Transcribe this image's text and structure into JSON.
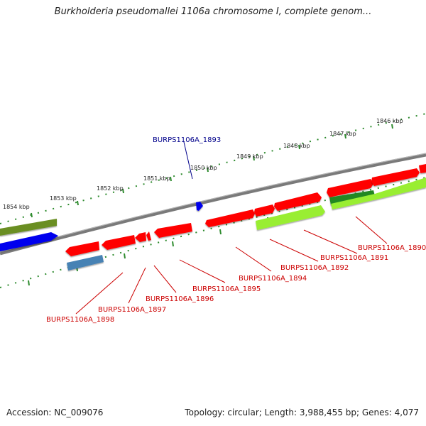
{
  "title": "Burkholderia pseudomallei 1106a chromosome I, complete genom...",
  "accession_text": "Accession: NC_009076",
  "summary_text": "Topology: circular; Length: 3,988,455 bp; Genes: 4,077",
  "colors": {
    "backbone": "#7a7a7a",
    "tick_marks": "#2e8b2e",
    "gene_red": "#ff0000",
    "gene_blue": "#0000ee",
    "gene_lightgreen": "#99ee33",
    "gene_darkgreen": "#228822",
    "gene_olive": "#6b8e23",
    "gene_steelblue": "#4682b4",
    "label_red": "#cc0000",
    "label_blue": "#00008b"
  },
  "kbp_labels": [
    "1854 kbp",
    "1853 kbp",
    "1852 kbp",
    "1851 kbp",
    "1850 kbp",
    "1849 kbp",
    "1848 kbp",
    "1847 kbp",
    "1846 kbp"
  ],
  "gene_labels": [
    {
      "text": "BURPS1106A_1893",
      "color": "blue"
    },
    {
      "text": "BURPS1106A_1890",
      "color": "red"
    },
    {
      "text": "BURPS1106A_1891",
      "color": "red"
    },
    {
      "text": "BURPS1106A_1892",
      "color": "red"
    },
    {
      "text": "BURPS1106A_1894",
      "color": "red"
    },
    {
      "text": "BURPS1106A_1895",
      "color": "red"
    },
    {
      "text": "BURPS1106A_1896",
      "color": "red"
    },
    {
      "text": "BURPS1106A_1897",
      "color": "red"
    },
    {
      "text": "BURPS1106A_1898",
      "color": "red"
    }
  ]
}
